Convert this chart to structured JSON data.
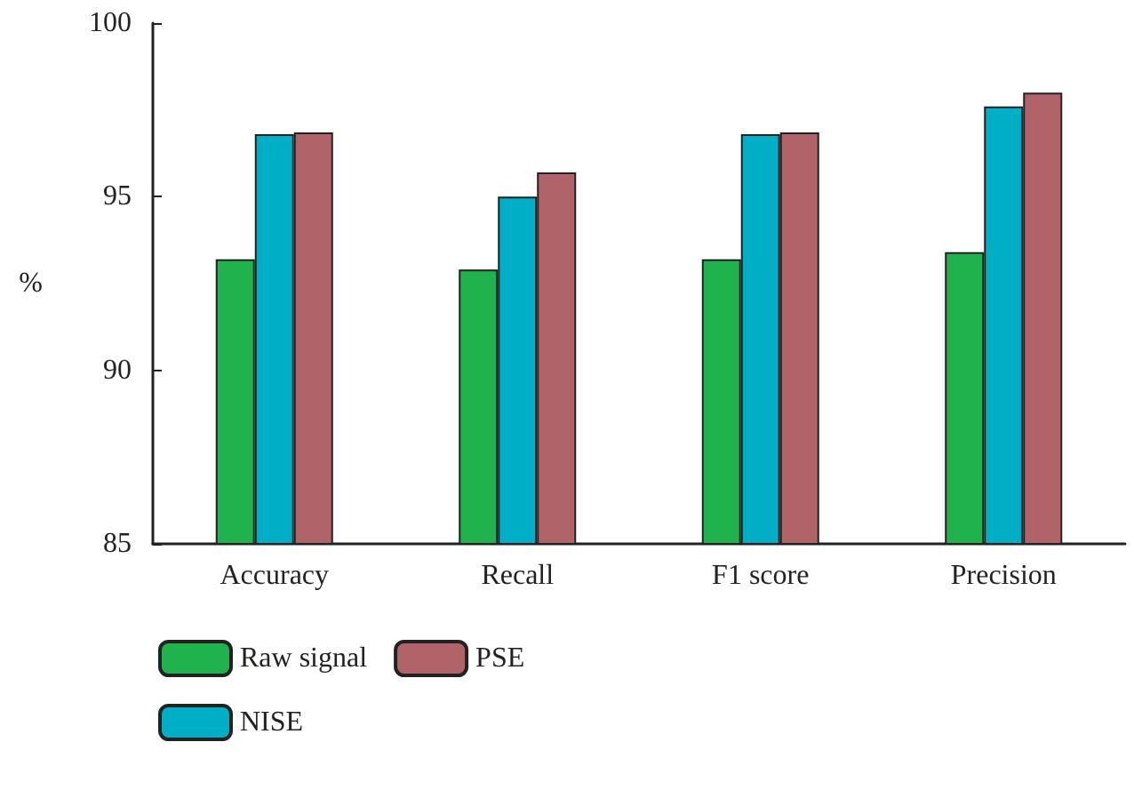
{
  "chart_data": {
    "type": "bar",
    "ylabel": "%",
    "categories": [
      "Accuracy",
      "Recall",
      "F1 score",
      "Precision"
    ],
    "series": [
      {
        "name": "Raw signal",
        "color": "#20b24c",
        "values": [
          93.2,
          92.9,
          93.2,
          93.4
        ]
      },
      {
        "name": "NISE",
        "color": "#00aec5",
        "values": [
          96.8,
          95.0,
          96.8,
          97.6
        ]
      },
      {
        "name": "PSE",
        "color": "#b0646a",
        "values": [
          96.85,
          95.7,
          96.85,
          98.0
        ]
      }
    ],
    "ylim": [
      85,
      100
    ],
    "yticks": [
      85,
      90,
      95,
      100
    ],
    "grid": false,
    "legend": "bottom left"
  }
}
